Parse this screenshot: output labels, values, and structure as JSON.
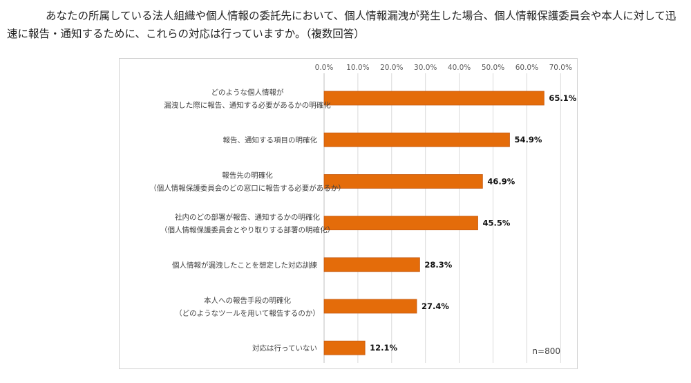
{
  "question": {
    "line1": "あなたの所属している法人組織や個人情報の委託先において、個人情報漏洩が発生した場合、個人情報保護委員会や本人に対して迅",
    "line2": "速に報告・通知するために、これらの対応は行っていますか。（複数回答）"
  },
  "chart_data": {
    "type": "bar",
    "orientation": "horizontal",
    "categories": [
      [
        "どのような個人情報が",
        "漏洩した際に報告、通知する必要があるかの明確化"
      ],
      [
        "報告、通知する項目の明確化"
      ],
      [
        "報告先の明確化",
        "（個人情報保護委員会のどの窓口に報告する必要があるか）"
      ],
      [
        "社内のどの部署が報告、通知するかの明確化",
        "（個人情報保護委員会とやり取りする部署の明確化）"
      ],
      [
        "個人情報が漏洩したことを想定した対応訓練"
      ],
      [
        "本人への報告手段の明確化",
        "（どのようなツールを用いて報告するのか）"
      ],
      [
        "対応は行っていない"
      ]
    ],
    "values": [
      65.1,
      54.9,
      46.9,
      45.5,
      28.3,
      27.4,
      12.1
    ],
    "value_labels": [
      "65.1%",
      "54.9%",
      "46.9%",
      "45.5%",
      "28.3%",
      "27.4%",
      "12.1%"
    ],
    "xlim": [
      0,
      70
    ],
    "x_ticks": [
      "0.0%",
      "10.0%",
      "20.0%",
      "30.0%",
      "40.0%",
      "50.0%",
      "60.0%",
      "70.0%"
    ],
    "x_axis_position": "top",
    "grid": true,
    "annotation": "n=800",
    "bar_color": "#E46C0A"
  }
}
